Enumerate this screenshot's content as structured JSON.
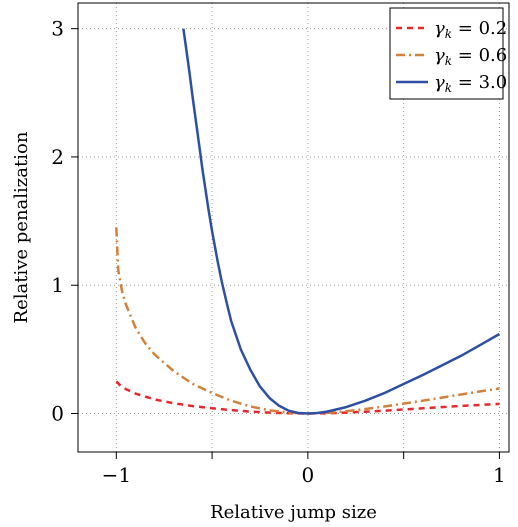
{
  "chart_data": {
    "type": "line",
    "xlabel": "Relative jump size",
    "ylabel": "Relative penalization",
    "xlim": [
      -1.2,
      1.05
    ],
    "ylim": [
      -0.3,
      3.2
    ],
    "xticks": [
      -1,
      -0.5,
      0,
      0.5,
      1
    ],
    "xtick_labels": [
      "−1",
      "",
      "0",
      "",
      "1"
    ],
    "yticks": [
      0,
      1,
      2,
      3
    ],
    "ytick_labels": [
      "0",
      "1",
      "2",
      "3"
    ],
    "grid": true,
    "legend_position": "top-right",
    "series": [
      {
        "name": "γk = 0.2",
        "label_var": "γ",
        "label_sub": "k",
        "label_value": "= 0.2",
        "color": "#e8272c",
        "dash": "dashed",
        "points": [
          [
            -1.0,
            0.25
          ],
          [
            -0.98,
            0.22
          ],
          [
            -0.95,
            0.19
          ],
          [
            -0.9,
            0.155
          ],
          [
            -0.8,
            0.11
          ],
          [
            -0.7,
            0.08
          ],
          [
            -0.6,
            0.058
          ],
          [
            -0.5,
            0.041
          ],
          [
            -0.4,
            0.027
          ],
          [
            -0.3,
            0.015
          ],
          [
            -0.2,
            0.007
          ],
          [
            -0.1,
            0.002
          ],
          [
            0.0,
            0.0
          ],
          [
            0.1,
            0.002
          ],
          [
            0.2,
            0.007
          ],
          [
            0.3,
            0.014
          ],
          [
            0.4,
            0.022
          ],
          [
            0.5,
            0.031
          ],
          [
            0.6,
            0.041
          ],
          [
            0.7,
            0.05
          ],
          [
            0.8,
            0.059
          ],
          [
            0.9,
            0.067
          ],
          [
            1.0,
            0.075
          ]
        ]
      },
      {
        "name": "γk = 0.6",
        "label_var": "γ",
        "label_sub": "k",
        "label_value": "= 0.6",
        "color": "#d2813b",
        "dash": "dashdot",
        "points": [
          [
            -1.0,
            1.45
          ],
          [
            -0.99,
            1.12
          ],
          [
            -0.97,
            0.95
          ],
          [
            -0.95,
            0.85
          ],
          [
            -0.9,
            0.67
          ],
          [
            -0.85,
            0.55
          ],
          [
            -0.8,
            0.46
          ],
          [
            -0.7,
            0.33
          ],
          [
            -0.6,
            0.23
          ],
          [
            -0.5,
            0.16
          ],
          [
            -0.4,
            0.1
          ],
          [
            -0.3,
            0.055
          ],
          [
            -0.2,
            0.025
          ],
          [
            -0.1,
            0.007
          ],
          [
            0.0,
            0.0
          ],
          [
            0.1,
            0.005
          ],
          [
            0.2,
            0.018
          ],
          [
            0.3,
            0.035
          ],
          [
            0.4,
            0.055
          ],
          [
            0.5,
            0.077
          ],
          [
            0.6,
            0.1
          ],
          [
            0.7,
            0.124
          ],
          [
            0.8,
            0.148
          ],
          [
            0.9,
            0.172
          ],
          [
            1.0,
            0.195
          ]
        ]
      },
      {
        "name": "γk = 3.0",
        "label_var": "γ",
        "label_sub": "k",
        "label_value": "= 3.0",
        "color": "#2e4fa3",
        "dash": "solid",
        "points": [
          [
            -0.65,
            3.0
          ],
          [
            -0.62,
            2.68
          ],
          [
            -0.6,
            2.45
          ],
          [
            -0.57,
            2.12
          ],
          [
            -0.55,
            1.9
          ],
          [
            -0.52,
            1.6
          ],
          [
            -0.5,
            1.42
          ],
          [
            -0.47,
            1.18
          ],
          [
            -0.45,
            1.03
          ],
          [
            -0.42,
            0.84
          ],
          [
            -0.4,
            0.72
          ],
          [
            -0.35,
            0.5
          ],
          [
            -0.3,
            0.34
          ],
          [
            -0.25,
            0.21
          ],
          [
            -0.2,
            0.12
          ],
          [
            -0.15,
            0.06
          ],
          [
            -0.1,
            0.022
          ],
          [
            -0.05,
            0.004
          ],
          [
            0.0,
            0.0
          ],
          [
            0.05,
            0.004
          ],
          [
            0.1,
            0.015
          ],
          [
            0.2,
            0.05
          ],
          [
            0.3,
            0.1
          ],
          [
            0.4,
            0.16
          ],
          [
            0.5,
            0.23
          ],
          [
            0.6,
            0.3
          ],
          [
            0.7,
            0.375
          ],
          [
            0.8,
            0.45
          ],
          [
            0.9,
            0.535
          ],
          [
            1.0,
            0.62
          ]
        ]
      }
    ]
  }
}
